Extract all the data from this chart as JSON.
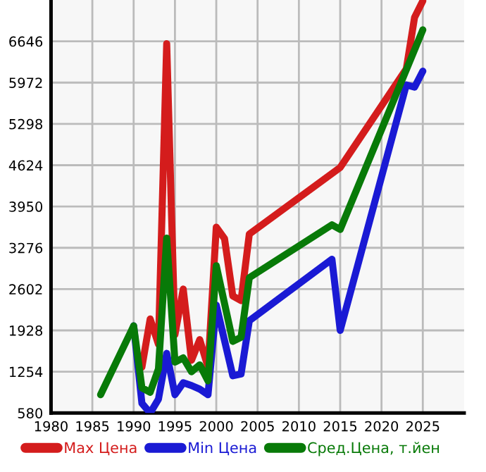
{
  "chart_data": {
    "type": "line",
    "xlim": [
      1980,
      2030
    ],
    "xticks": [
      1980,
      1985,
      1990,
      1995,
      2000,
      2005,
      2010,
      2015,
      2020,
      2025
    ],
    "ylim": [
      580,
      7320
    ],
    "yticks": [
      580,
      1254,
      1928,
      2602,
      3276,
      3950,
      4624,
      5298,
      5972,
      6646
    ],
    "grid": true,
    "legend": "bottom",
    "marker": "none",
    "line_style": "solid",
    "series": [
      {
        "name": "Max Цена",
        "color": "#d41c1c",
        "x": [
          1991,
          1992,
          1993,
          1994,
          1995,
          1996,
          1997,
          1998,
          1999,
          2000,
          2001,
          2002,
          2003,
          2004,
          2015,
          2023,
          2024,
          2025
        ],
        "values": [
          1329,
          2115,
          1703,
          6608,
          1860,
          2602,
          1440,
          1777,
          1329,
          3613,
          3426,
          2490,
          2415,
          3501,
          4586,
          6197,
          7035,
          7305
        ]
      },
      {
        "name": "Min Цена",
        "color": "#1a1ad4",
        "x": [
          1990,
          1991,
          1992,
          1993,
          1994,
          1995,
          1996,
          1997,
          1998,
          1999,
          2000,
          2002,
          2003,
          2004,
          2014,
          2015,
          2023,
          2024,
          2025
        ],
        "values": [
          2002,
          737,
          580,
          805,
          1553,
          879,
          1074,
          1029,
          969,
          879,
          2339,
          1187,
          1216,
          2085,
          3089,
          1928,
          5935,
          5898,
          6159
        ]
      },
      {
        "name": "Сред.Цена, т.йен",
        "color": "#087a08",
        "x": [
          1986,
          1990,
          1991,
          1992,
          1993,
          1994,
          1995,
          1996,
          1997,
          1998,
          1999,
          2000,
          2002,
          2003,
          2004,
          2014,
          2015,
          2025
        ],
        "values": [
          879,
          2002,
          991,
          917,
          1299,
          3433,
          1411,
          1479,
          1254,
          1366,
          1104,
          2984,
          1748,
          1816,
          2789,
          3651,
          3575,
          6833
        ]
      }
    ]
  }
}
